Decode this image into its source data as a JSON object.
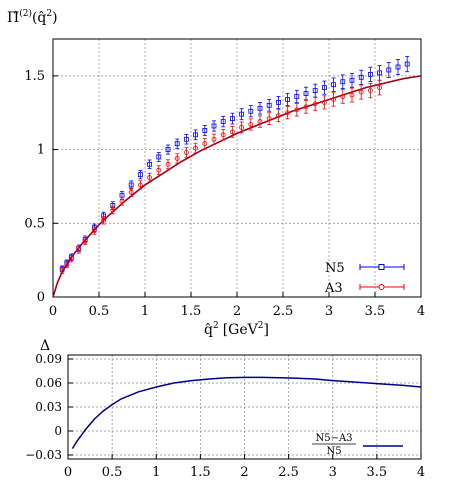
{
  "chart_data": [
    {
      "type": "scatter",
      "ylabel_html": "Π̂⁽²⁾(q̂²)",
      "ylabel_parts": {
        "main": "Π̂",
        "sup": "(2)",
        "arg": "(q̂",
        "argsup": "2",
        "close": ")"
      },
      "xlabel_parts": {
        "main": "q̂",
        "sup": "2",
        "unit": "[GeV",
        "unitsup": "2",
        "close": "]"
      },
      "xlim": [
        0,
        4
      ],
      "ylim": [
        0,
        1.75
      ],
      "xticks": [
        "0",
        "0.5",
        "1",
        "1.5",
        "2",
        "2.5",
        "3",
        "3.5",
        "4"
      ],
      "yticks": [
        "0",
        "0.5",
        "1",
        "1.5"
      ],
      "ytick_values": [
        0,
        0.5,
        1,
        1.5
      ],
      "xtick_values": [
        0,
        0.5,
        1,
        1.5,
        2,
        2.5,
        3,
        3.5,
        4
      ],
      "grid": true,
      "legend_position": "bottom-right",
      "series": [
        {
          "name": "N5",
          "color": "#0000ff",
          "marker": "square",
          "x": [
            0.1,
            0.15,
            0.2,
            0.28,
            0.35,
            0.45,
            0.55,
            0.65,
            0.75,
            0.85,
            0.95,
            1.05,
            1.15,
            1.25,
            1.35,
            1.45,
            1.55,
            1.65,
            1.75,
            1.85,
            1.95,
            2.05,
            2.15,
            2.25,
            2.35,
            2.45,
            2.55,
            2.65,
            2.75,
            2.85,
            2.95,
            3.05,
            3.15,
            3.25,
            3.35,
            3.45,
            3.55,
            3.65,
            3.75,
            3.85
          ],
          "y": [
            0.19,
            0.23,
            0.27,
            0.33,
            0.39,
            0.47,
            0.55,
            0.62,
            0.69,
            0.76,
            0.83,
            0.9,
            0.95,
            1.0,
            1.04,
            1.07,
            1.1,
            1.13,
            1.16,
            1.19,
            1.21,
            1.24,
            1.26,
            1.28,
            1.3,
            1.32,
            1.34,
            1.36,
            1.38,
            1.4,
            1.42,
            1.44,
            1.46,
            1.47,
            1.49,
            1.51,
            1.52,
            1.54,
            1.56,
            1.58
          ]
        },
        {
          "name": "A3",
          "color": "#ff0000",
          "marker": "circle",
          "x": [
            0.1,
            0.15,
            0.2,
            0.28,
            0.35,
            0.45,
            0.55,
            0.65,
            0.75,
            0.85,
            0.95,
            1.05,
            1.15,
            1.25,
            1.35,
            1.45,
            1.55,
            1.65,
            1.75,
            1.85,
            1.95,
            2.05,
            2.15,
            2.25,
            2.35,
            2.45,
            2.55,
            2.65,
            2.75,
            2.85,
            2.95,
            3.05,
            3.15,
            3.25,
            3.35,
            3.45,
            3.55
          ],
          "y": [
            0.18,
            0.22,
            0.26,
            0.32,
            0.38,
            0.45,
            0.52,
            0.59,
            0.65,
            0.71,
            0.76,
            0.81,
            0.86,
            0.9,
            0.94,
            0.98,
            1.01,
            1.04,
            1.07,
            1.1,
            1.12,
            1.15,
            1.17,
            1.19,
            1.21,
            1.23,
            1.25,
            1.27,
            1.29,
            1.31,
            1.32,
            1.34,
            1.36,
            1.37,
            1.39,
            1.4,
            1.42
          ]
        }
      ],
      "fit_curve": {
        "color": "#a0001e",
        "x": [
          0,
          0.05,
          0.1,
          0.2,
          0.3,
          0.4,
          0.5,
          0.6,
          0.8,
          1.0,
          1.2,
          1.4,
          1.6,
          1.8,
          2.0,
          2.2,
          2.4,
          2.6,
          2.8,
          3.0,
          3.2,
          3.4,
          3.6,
          3.8,
          4.0
        ],
        "y": [
          0,
          0.1,
          0.17,
          0.27,
          0.35,
          0.42,
          0.49,
          0.55,
          0.66,
          0.76,
          0.84,
          0.92,
          0.99,
          1.05,
          1.11,
          1.16,
          1.21,
          1.26,
          1.3,
          1.34,
          1.38,
          1.42,
          1.45,
          1.48,
          1.5
        ]
      }
    },
    {
      "type": "line",
      "ylabel": "Δ",
      "xlim": [
        0,
        4
      ],
      "ylim": [
        -0.035,
        0.095
      ],
      "xticks": [
        "0",
        "0.5",
        "1",
        "1.5",
        "2",
        "2.5",
        "3",
        "3.5",
        "4"
      ],
      "xtick_values": [
        0,
        0.5,
        1,
        1.5,
        2,
        2.5,
        3,
        3.5,
        4
      ],
      "yticks": [
        "−0.03",
        "0",
        "0.03",
        "0.06",
        "0.09"
      ],
      "ytick_values": [
        -0.03,
        0,
        0.03,
        0.06,
        0.09
      ],
      "grid": true,
      "legend_position": "bottom-right",
      "series": [
        {
          "name_numerator": "N5−A3",
          "name_denominator": "N5",
          "color": "#00008b",
          "x": [
            0.05,
            0.1,
            0.2,
            0.3,
            0.4,
            0.5,
            0.6,
            0.8,
            1.0,
            1.2,
            1.4,
            1.6,
            1.8,
            2.0,
            2.2,
            2.4,
            2.6,
            2.8,
            3.0,
            3.2,
            3.4,
            3.6,
            3.8,
            4.0
          ],
          "y": [
            -0.022,
            -0.013,
            0.002,
            0.015,
            0.025,
            0.033,
            0.04,
            0.049,
            0.055,
            0.06,
            0.063,
            0.065,
            0.0665,
            0.067,
            0.067,
            0.0665,
            0.066,
            0.065,
            0.063,
            0.0615,
            0.06,
            0.0585,
            0.057,
            0.055
          ]
        }
      ]
    }
  ]
}
